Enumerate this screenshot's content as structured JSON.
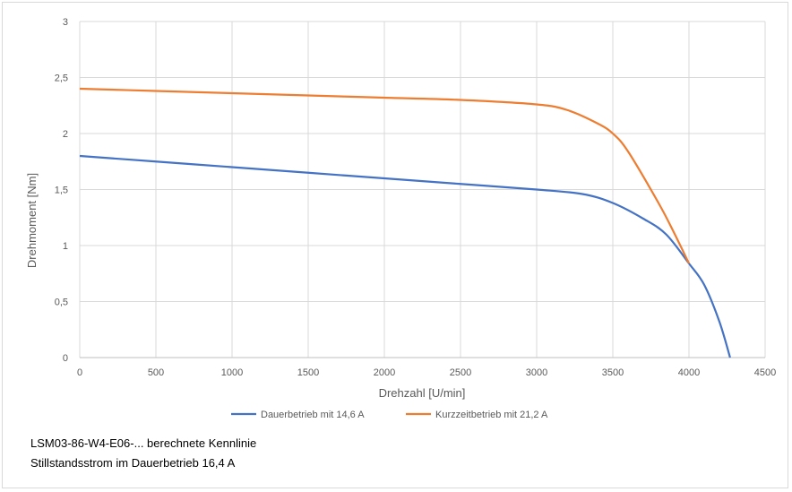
{
  "chart_data": {
    "type": "line",
    "xlabel": "Drehzahl [U/min]",
    "ylabel": "Drehmoment [Nm]",
    "xlim": [
      0,
      4500
    ],
    "ylim": [
      0,
      3
    ],
    "xticks": [
      0,
      500,
      1000,
      1500,
      2000,
      2500,
      3000,
      3500,
      4000,
      4500
    ],
    "yticks": [
      0,
      0.5,
      1,
      1.5,
      2,
      2.5,
      3
    ],
    "xtick_labels": [
      "0",
      "500",
      "1000",
      "1500",
      "2000",
      "2500",
      "3000",
      "3500",
      "4000",
      "4500"
    ],
    "ytick_labels": [
      "0",
      "0,5",
      "1",
      "1,5",
      "2",
      "2,5",
      "3"
    ],
    "grid": true,
    "legend_position": "bottom",
    "series": [
      {
        "name": "Dauerbetrieb mit 14,6 A",
        "color": "#4472C4",
        "points": [
          [
            0,
            1.8
          ],
          [
            500,
            1.75
          ],
          [
            1000,
            1.7
          ],
          [
            1500,
            1.65
          ],
          [
            2000,
            1.6
          ],
          [
            2500,
            1.55
          ],
          [
            3000,
            1.5
          ],
          [
            3300,
            1.46
          ],
          [
            3500,
            1.38
          ],
          [
            3700,
            1.24
          ],
          [
            3850,
            1.1
          ],
          [
            4000,
            0.84
          ],
          [
            4100,
            0.65
          ],
          [
            4200,
            0.32
          ],
          [
            4270,
            0
          ]
        ]
      },
      {
        "name": "Kurzzeitbetrieb mit 21,2 A",
        "color": "#ED7D31",
        "points": [
          [
            0,
            2.4
          ],
          [
            500,
            2.38
          ],
          [
            1000,
            2.36
          ],
          [
            1500,
            2.34
          ],
          [
            2000,
            2.32
          ],
          [
            2500,
            2.3
          ],
          [
            3000,
            2.26
          ],
          [
            3200,
            2.21
          ],
          [
            3400,
            2.09
          ],
          [
            3500,
            2.0
          ],
          [
            3600,
            1.84
          ],
          [
            3800,
            1.38
          ],
          [
            3900,
            1.12
          ],
          [
            4000,
            0.84
          ]
        ]
      }
    ]
  },
  "caption": {
    "line1": "LSM03-86-W4-E06-... berechnete Kennlinie",
    "line2": "Stillstandsstrom im Dauerbetrieb 16,4 A"
  }
}
